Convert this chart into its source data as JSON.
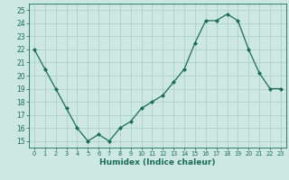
{
  "x": [
    0,
    1,
    2,
    3,
    4,
    5,
    6,
    7,
    8,
    9,
    10,
    11,
    12,
    13,
    14,
    15,
    16,
    17,
    18,
    19,
    20,
    21,
    22,
    23
  ],
  "y": [
    22,
    20.5,
    19,
    17.5,
    16,
    15,
    15.5,
    15,
    16,
    16.5,
    17.5,
    18,
    18.5,
    19.5,
    20.5,
    22.5,
    24.2,
    24.2,
    24.7,
    24.2,
    22,
    20.2,
    19,
    19
  ],
  "line_color": "#1a6b5a",
  "marker": "D",
  "marker_size": 2.0,
  "linewidth": 0.9,
  "bg_color": "#cce8e0",
  "grid_color": "#a8ccc4",
  "xlabel": "Humidex (Indice chaleur)",
  "ylim": [
    14.5,
    25.5
  ],
  "xlim": [
    -0.5,
    23.5
  ],
  "yticks": [
    15,
    16,
    17,
    18,
    19,
    20,
    21,
    22,
    23,
    24,
    25
  ],
  "xticks": [
    0,
    1,
    2,
    3,
    4,
    5,
    6,
    7,
    8,
    9,
    10,
    11,
    12,
    13,
    14,
    15,
    16,
    17,
    18,
    19,
    20,
    21,
    22,
    23
  ],
  "tick_color": "#1a6b5a",
  "ytick_fontsize": 5.5,
  "xtick_fontsize": 4.8,
  "xlabel_fontsize": 6.5,
  "xlabel_fontweight": "bold"
}
